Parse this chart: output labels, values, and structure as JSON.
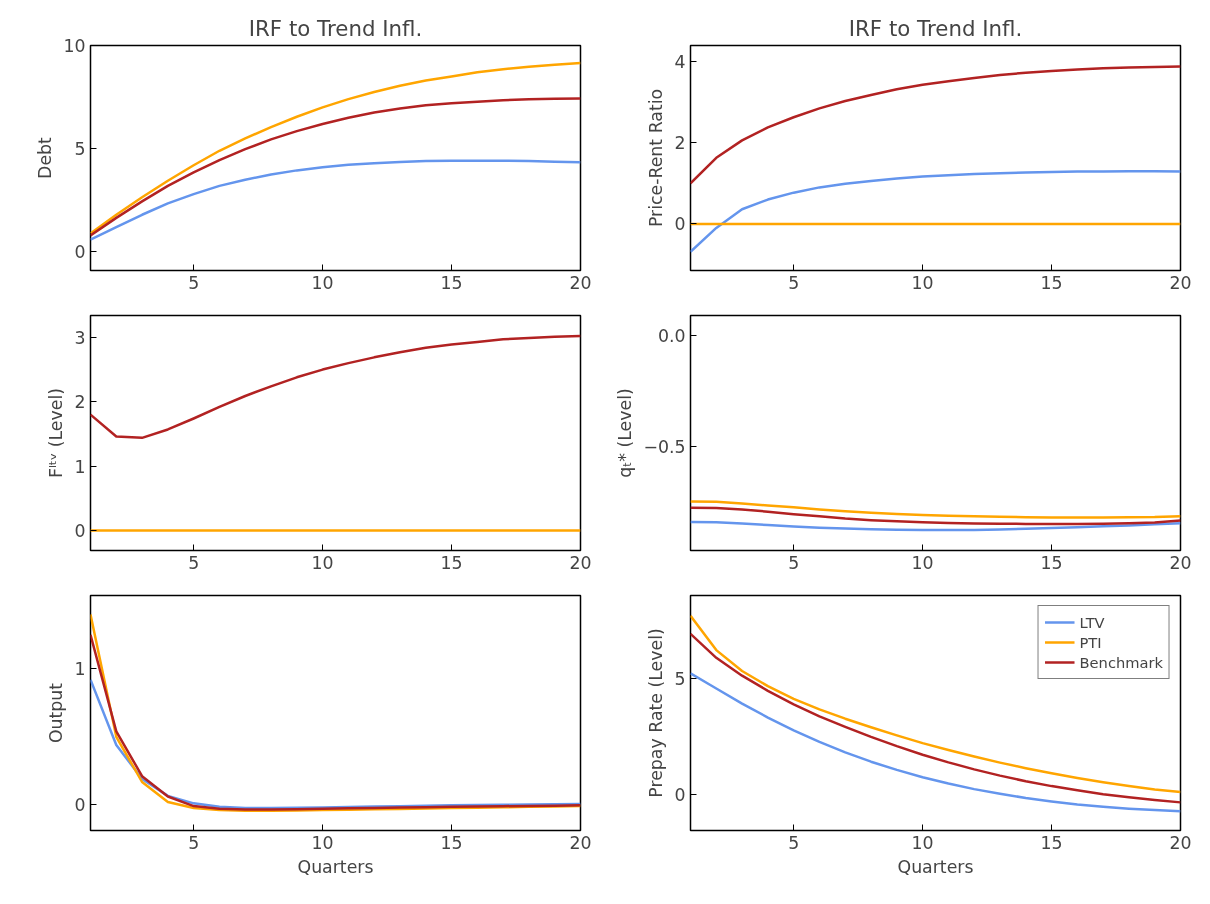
{
  "chart_data": [
    {
      "type": "line",
      "title": "IRF to Trend Infl.",
      "ylabel": "Debt",
      "x": [
        1,
        2,
        3,
        4,
        5,
        6,
        7,
        8,
        9,
        10,
        11,
        12,
        13,
        14,
        15,
        16,
        17,
        18,
        19,
        20
      ],
      "xlim": [
        1,
        20
      ],
      "xticks": [
        5,
        10,
        15,
        20
      ],
      "ylim": [
        -0.9,
        10
      ],
      "yticks": [
        0,
        5,
        10
      ],
      "line_style": "solid",
      "series": [
        {
          "color": "#6495ed",
          "values": [
            0.6,
            1.2,
            1.8,
            2.35,
            2.8,
            3.2,
            3.5,
            3.75,
            3.95,
            4.1,
            4.22,
            4.3,
            4.36,
            4.4,
            4.42,
            4.42,
            4.42,
            4.4,
            4.37,
            4.35
          ]
        },
        {
          "color": "#ffa500",
          "values": [
            0.9,
            1.8,
            2.65,
            3.45,
            4.2,
            4.9,
            5.5,
            6.05,
            6.55,
            7.0,
            7.4,
            7.75,
            8.05,
            8.3,
            8.5,
            8.7,
            8.85,
            8.97,
            9.07,
            9.15
          ]
        },
        {
          "color": "#b22222",
          "values": [
            0.8,
            1.65,
            2.45,
            3.2,
            3.85,
            4.45,
            4.98,
            5.45,
            5.85,
            6.2,
            6.5,
            6.75,
            6.95,
            7.1,
            7.2,
            7.28,
            7.35,
            7.4,
            7.42,
            7.43
          ]
        }
      ]
    },
    {
      "type": "line",
      "title": "IRF to Trend Infl.",
      "ylabel": "Price-Rent Ratio",
      "x": [
        1,
        2,
        3,
        4,
        5,
        6,
        7,
        8,
        9,
        10,
        11,
        12,
        13,
        14,
        15,
        16,
        17,
        18,
        19,
        20
      ],
      "xlim": [
        1,
        20
      ],
      "xticks": [
        5,
        10,
        15,
        20
      ],
      "ylim": [
        -1.15,
        4.4
      ],
      "yticks": [
        0,
        2,
        4
      ],
      "line_style": "solid",
      "series": [
        {
          "color": "#6495ed",
          "values": [
            -0.69,
            -0.1,
            0.36,
            0.6,
            0.77,
            0.9,
            0.99,
            1.06,
            1.12,
            1.17,
            1.2,
            1.23,
            1.25,
            1.27,
            1.28,
            1.29,
            1.29,
            1.3,
            1.3,
            1.29
          ]
        },
        {
          "color": "#ffa500",
          "values": [
            0,
            0,
            0,
            0,
            0,
            0,
            0,
            0,
            0,
            0,
            0,
            0,
            0,
            0,
            0,
            0,
            0,
            0,
            0,
            0
          ]
        },
        {
          "color": "#b22222",
          "values": [
            1.0,
            1.63,
            2.06,
            2.38,
            2.63,
            2.85,
            3.03,
            3.18,
            3.32,
            3.43,
            3.52,
            3.6,
            3.67,
            3.73,
            3.77,
            3.81,
            3.84,
            3.86,
            3.87,
            3.88
          ]
        }
      ]
    },
    {
      "type": "line",
      "ylabel": "Fˡᵗᵛ (Level)",
      "x": [
        1,
        2,
        3,
        4,
        5,
        6,
        7,
        8,
        9,
        10,
        11,
        12,
        13,
        14,
        15,
        16,
        17,
        18,
        19,
        20
      ],
      "xlim": [
        1,
        20
      ],
      "xticks": [
        5,
        10,
        15,
        20
      ],
      "ylim": [
        -0.31,
        3.34
      ],
      "yticks": [
        0,
        1,
        2,
        3
      ],
      "line_style": "solid",
      "series": [
        {
          "color": "#ffa500",
          "values": [
            0,
            0,
            0,
            0,
            0,
            0,
            0,
            0,
            0,
            0,
            0,
            0,
            0,
            0,
            0,
            0,
            0,
            0,
            0,
            0
          ]
        },
        {
          "color": "#b22222",
          "values": [
            1.8,
            1.46,
            1.44,
            1.57,
            1.74,
            1.92,
            2.09,
            2.24,
            2.38,
            2.5,
            2.6,
            2.69,
            2.77,
            2.84,
            2.89,
            2.93,
            2.97,
            2.99,
            3.01,
            3.02
          ]
        }
      ]
    },
    {
      "type": "line",
      "ylabel": "qₜ* (Level)",
      "x": [
        1,
        2,
        3,
        4,
        5,
        6,
        7,
        8,
        9,
        10,
        11,
        12,
        13,
        14,
        15,
        16,
        17,
        18,
        19,
        20
      ],
      "xlim": [
        1,
        20
      ],
      "xticks": [
        5,
        10,
        15,
        20
      ],
      "ylim": [
        -0.97,
        0.09
      ],
      "yticks": [
        {
          "value": -0.5,
          "label": "−0.5"
        },
        {
          "value": 0,
          "label": "0.0"
        }
      ],
      "line_style": "solid",
      "series": [
        {
          "color": "#6495ed",
          "values": [
            -0.842,
            -0.843,
            -0.848,
            -0.855,
            -0.862,
            -0.867,
            -0.871,
            -0.874,
            -0.876,
            -0.878,
            -0.878,
            -0.877,
            -0.875,
            -0.872,
            -0.869,
            -0.865,
            -0.861,
            -0.857,
            -0.852,
            -0.847
          ]
        },
        {
          "color": "#ffa500",
          "values": [
            -0.749,
            -0.75,
            -0.758,
            -0.767,
            -0.775,
            -0.785,
            -0.793,
            -0.8,
            -0.805,
            -0.81,
            -0.813,
            -0.816,
            -0.818,
            -0.82,
            -0.821,
            -0.821,
            -0.821,
            -0.82,
            -0.819,
            -0.815
          ]
        },
        {
          "color": "#b22222",
          "values": [
            -0.777,
            -0.778,
            -0.785,
            -0.795,
            -0.806,
            -0.816,
            -0.826,
            -0.833,
            -0.838,
            -0.843,
            -0.846,
            -0.848,
            -0.849,
            -0.85,
            -0.85,
            -0.85,
            -0.849,
            -0.847,
            -0.844,
            -0.835
          ]
        }
      ]
    },
    {
      "type": "line",
      "xlabel": "Quarters",
      "ylabel": "Output",
      "x": [
        1,
        2,
        3,
        4,
        5,
        6,
        7,
        8,
        9,
        10,
        11,
        12,
        13,
        14,
        15,
        16,
        17,
        18,
        19,
        20
      ],
      "xlim": [
        1,
        20
      ],
      "xticks": [
        5,
        10,
        15,
        20
      ],
      "ylim": [
        -0.19,
        1.54
      ],
      "yticks": [
        0,
        1
      ],
      "line_style": "solid",
      "series": [
        {
          "color": "#6495ed",
          "values": [
            0.92,
            0.44,
            0.19,
            0.065,
            0.01,
            -0.015,
            -0.025,
            -0.025,
            -0.023,
            -0.02,
            -0.017,
            -0.014,
            -0.011,
            -0.008,
            -0.005,
            -0.003,
            -0.001,
            0.001,
            0.003,
            0.005
          ]
        },
        {
          "color": "#ffa500",
          "values": [
            1.4,
            0.5,
            0.167,
            0.02,
            -0.025,
            -0.04,
            -0.045,
            -0.045,
            -0.043,
            -0.04,
            -0.037,
            -0.034,
            -0.031,
            -0.028,
            -0.025,
            -0.022,
            -0.019,
            -0.016,
            -0.013,
            -0.01
          ]
        },
        {
          "color": "#b22222",
          "values": [
            1.25,
            0.54,
            0.21,
            0.06,
            -0.01,
            -0.03,
            -0.035,
            -0.035,
            -0.033,
            -0.03,
            -0.027,
            -0.024,
            -0.021,
            -0.018,
            -0.016,
            -0.014,
            -0.011,
            -0.009,
            -0.007,
            -0.005
          ]
        }
      ]
    },
    {
      "type": "line",
      "xlabel": "Quarters",
      "ylabel": "Prepay Rate (Level)",
      "x": [
        1,
        2,
        3,
        4,
        5,
        6,
        7,
        8,
        9,
        10,
        11,
        12,
        13,
        14,
        15,
        16,
        17,
        18,
        19,
        20
      ],
      "xlim": [
        1,
        20
      ],
      "xticks": [
        5,
        10,
        15,
        20
      ],
      "ylim": [
        -1.56,
        8.55
      ],
      "yticks": [
        0,
        5
      ],
      "line_style": "solid",
      "legend": "top right",
      "series": [
        {
          "name": "LTV",
          "color": "#6495ed",
          "values": [
            5.2,
            4.55,
            3.9,
            3.3,
            2.75,
            2.25,
            1.8,
            1.4,
            1.05,
            0.73,
            0.46,
            0.22,
            0.02,
            -0.16,
            -0.31,
            -0.44,
            -0.54,
            -0.62,
            -0.68,
            -0.73
          ]
        },
        {
          "name": "PTI",
          "color": "#ffa500",
          "values": [
            7.68,
            6.2,
            5.3,
            4.65,
            4.1,
            3.65,
            3.25,
            2.88,
            2.53,
            2.2,
            1.9,
            1.62,
            1.36,
            1.12,
            0.9,
            0.7,
            0.52,
            0.35,
            0.2,
            0.1
          ]
        },
        {
          "name": "Benchmark",
          "color": "#b22222",
          "values": [
            6.9,
            5.87,
            5.1,
            4.45,
            3.87,
            3.35,
            2.9,
            2.47,
            2.07,
            1.7,
            1.37,
            1.07,
            0.8,
            0.56,
            0.35,
            0.17,
            0.0,
            -0.13,
            -0.25,
            -0.35
          ]
        }
      ]
    }
  ]
}
